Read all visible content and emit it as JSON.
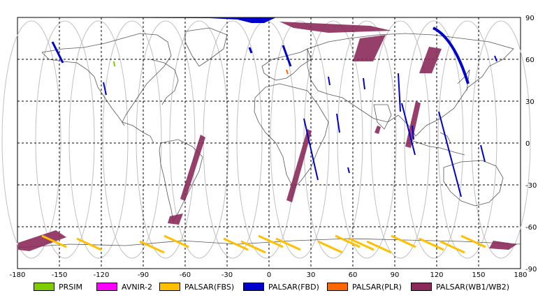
{
  "map": {
    "x_ticks": [
      "-180",
      "-150",
      "-120",
      "-90",
      "-60",
      "-30",
      "0",
      "30",
      "60",
      "90",
      "120",
      "150",
      "180"
    ],
    "y_ticks": [
      "90",
      "60",
      "30",
      "0",
      "-30",
      "-60",
      "-90"
    ],
    "grid": true
  },
  "legend": [
    {
      "label": "PRSIM",
      "color": "#7fcc00"
    },
    {
      "label": "AVNIR-2",
      "color": "#ff00ff"
    },
    {
      "label": "PALSAR(FBS)",
      "color": "#ffc000"
    },
    {
      "label": "PALSAR(FBD)",
      "color": "#0000cc"
    },
    {
      "label": "PALSAR(PLR)",
      "color": "#ff6600"
    },
    {
      "label": "PALSAR(WB1/WB2)",
      "color": "#8b2a5a"
    }
  ]
}
